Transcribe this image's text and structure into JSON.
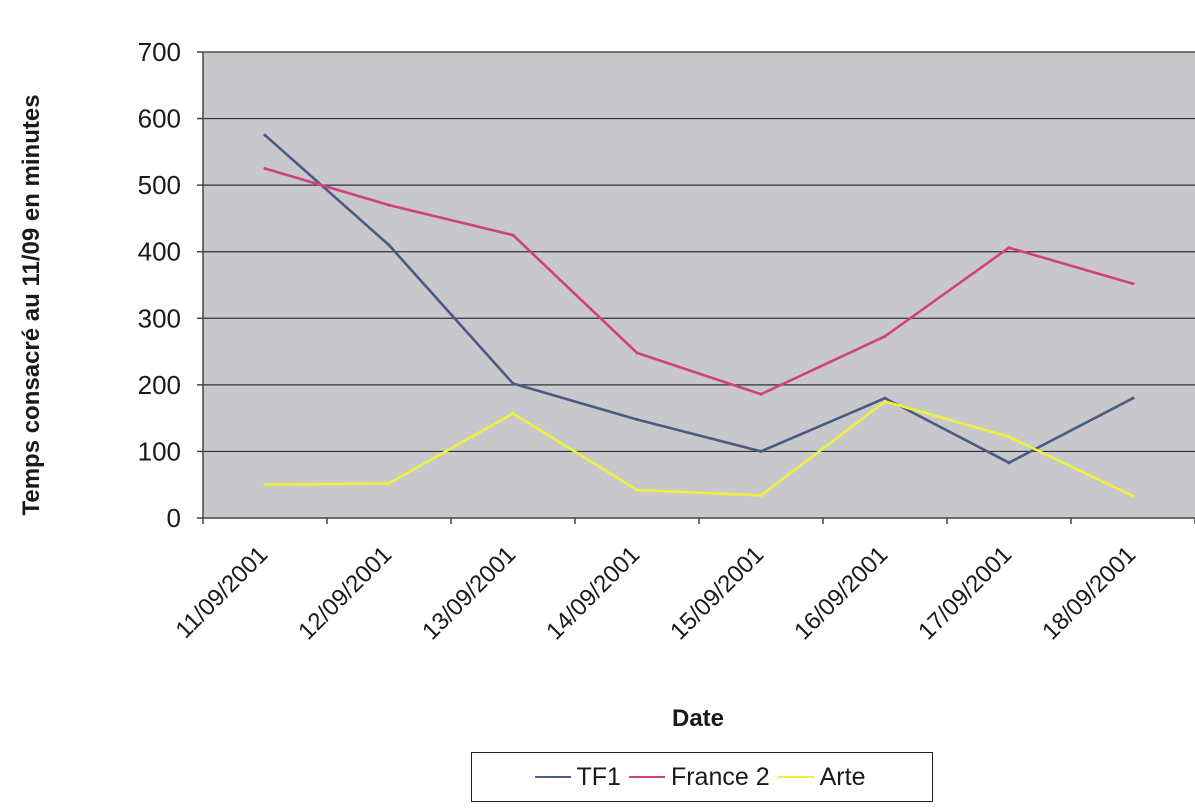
{
  "chart_data": {
    "type": "line",
    "title": "",
    "xlabel": "Date",
    "ylabel": "Temps consacré au 11/09 en minutes",
    "ylim": [
      0,
      700
    ],
    "yticks": [
      0,
      100,
      200,
      300,
      400,
      500,
      600,
      700
    ],
    "categories": [
      "11/09/2001",
      "12/09/2001",
      "13/09/2001",
      "14/09/2001",
      "15/09/2001",
      "16/09/2001",
      "17/09/2001",
      "18/09/2001"
    ],
    "series": [
      {
        "name": "TF1",
        "color": "#4a5a82",
        "values": [
          575,
          410,
          202,
          148,
          100,
          180,
          83,
          180
        ]
      },
      {
        "name": "France 2",
        "color": "#d0427a",
        "values": [
          525,
          470,
          425,
          248,
          186,
          273,
          406,
          352
        ]
      },
      {
        "name": "Arte",
        "color": "#eef040",
        "values": [
          50,
          52,
          157,
          42,
          34,
          175,
          122,
          33
        ]
      }
    ],
    "grid": true,
    "plot_background": "#c8c8cc",
    "legend_position": "bottom"
  }
}
